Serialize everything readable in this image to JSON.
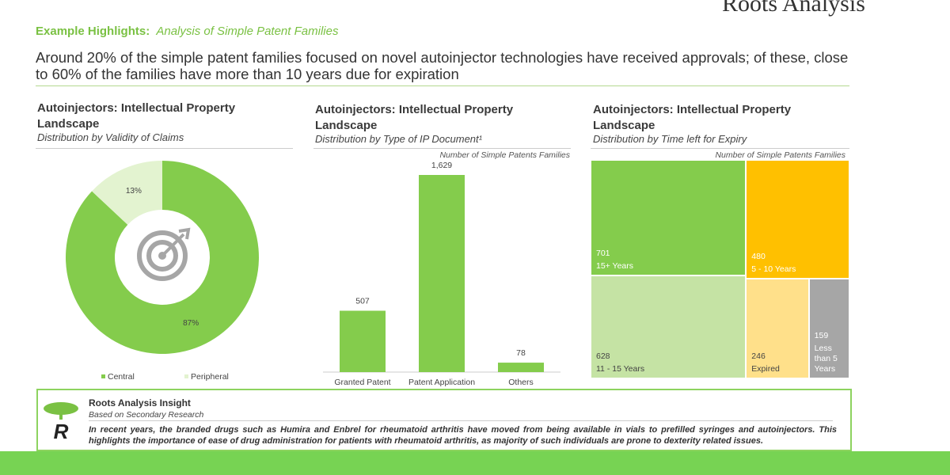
{
  "header": {
    "brand": "Roots Analysis",
    "label": "Example Highlights:",
    "title": "Analysis of Simple Patent Families",
    "summary": "Around 20% of the simple patent families focused on novel autoinjector technologies have received approvals; of these, close to 60% of the families have more than 10 years due for expiration"
  },
  "chart_data": [
    {
      "type": "pie",
      "title": "Autoinjectors: Intellectual Property Landscape",
      "subtitle": "Distribution by Validity of Claims",
      "categories": [
        "Central",
        "Peripheral"
      ],
      "values": [
        87,
        13
      ],
      "value_labels": [
        "87%",
        "13%"
      ],
      "colors": [
        "#84cc4c",
        "#e3f3d0"
      ],
      "legend": "bottom"
    },
    {
      "type": "bar",
      "title": "Autoinjectors: Intellectual Property Landscape",
      "subtitle": "Distribution by Type of IP Document¹",
      "note": "Number of Simple Patents Families",
      "categories": [
        "Granted Patent",
        "Patent Application",
        "Others"
      ],
      "values": [
        507,
        1629,
        78
      ],
      "value_labels": [
        "507",
        "1,629",
        "78"
      ],
      "color": "#84cc4c"
    },
    {
      "type": "treemap",
      "title": "Autoinjectors: Intellectual Property Landscape",
      "subtitle": "Distribution by Time left for Expiry",
      "note": "Number of Simple Patents Families",
      "categories": [
        "15+ Years",
        "5 - 10 Years",
        "11 - 15 Years",
        "Expired",
        "Less than 5 Years"
      ],
      "values": [
        701,
        480,
        628,
        246,
        159
      ],
      "colors": [
        "#84cc4c",
        "#ffc000",
        "#c5e3a4",
        "#ffe08a",
        "#a6a6a6"
      ]
    }
  ],
  "insight": {
    "title": "Roots Analysis Insight",
    "source": "Based on Secondary Research",
    "text": "In recent years, the branded drugs such as Humira and Enbrel for rheumatoid arthritis have moved from being available in vials to prefilled syringes and autoinjectors. This highlights the importance of ease of drug administration for patients with rheumatoid arthritis, as majority of such individuals are prone to dexterity related issues."
  }
}
